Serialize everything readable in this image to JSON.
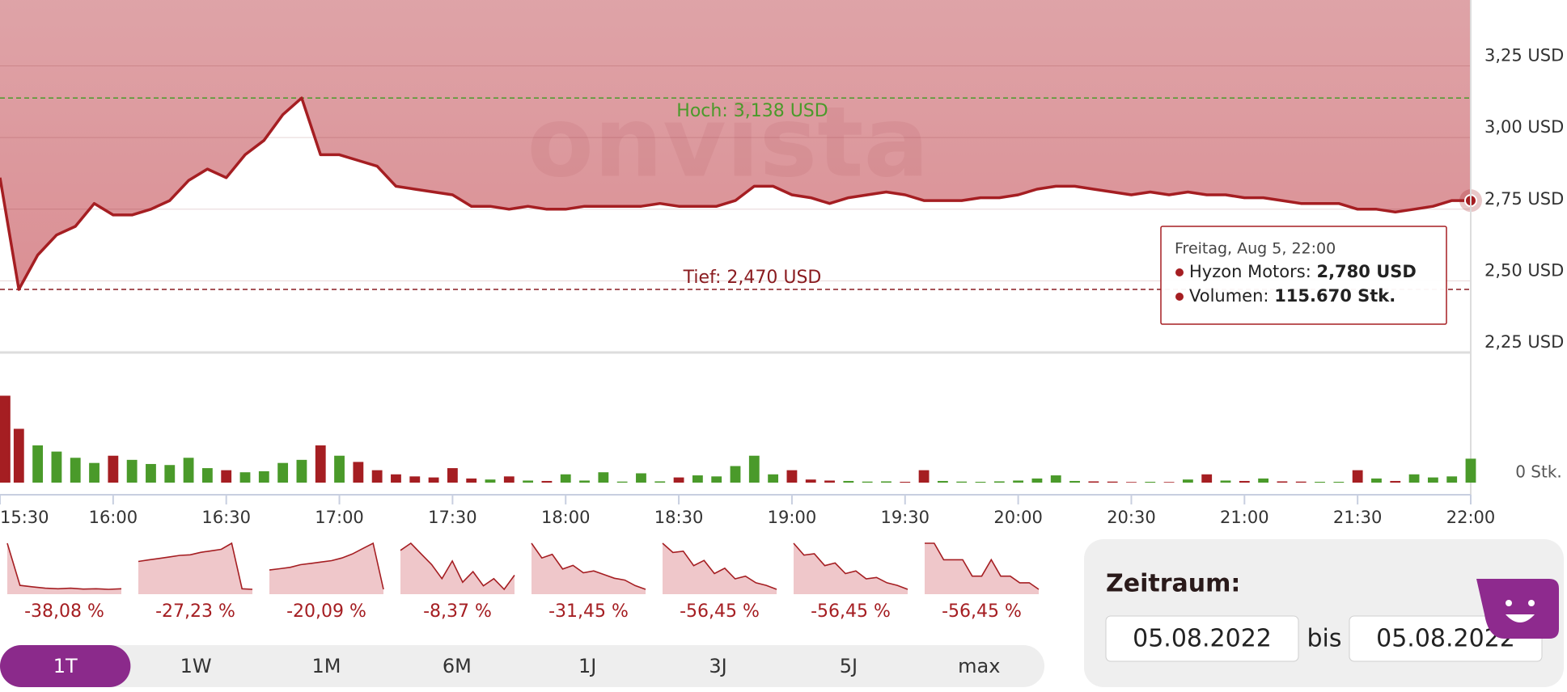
{
  "chart_data": [
    {
      "type": "line",
      "watermark": "onvista",
      "categories": [
        "15:30",
        null,
        null,
        null,
        null,
        null,
        "16:00",
        null,
        null,
        null,
        null,
        null,
        "16:30",
        null,
        null,
        null,
        null,
        null,
        "17:00",
        null,
        null,
        null,
        null,
        null,
        "17:30",
        null,
        null,
        null,
        null,
        null,
        "18:00",
        null,
        null,
        null,
        null,
        null,
        "18:30",
        null,
        null,
        null,
        null,
        null,
        "19:00",
        null,
        null,
        null,
        null,
        null,
        "19:30",
        null,
        null,
        null,
        null,
        null,
        "20:00",
        null,
        null,
        null,
        null,
        null,
        "20:30",
        null,
        null,
        null,
        null,
        null,
        "21:00",
        null,
        null,
        null,
        null,
        null,
        "21:30",
        null,
        null,
        null,
        null,
        null,
        "22:00"
      ],
      "series": [
        {
          "name": "Hyzon Motors",
          "color": "#a51e22",
          "values": [
            2.86,
            2.47,
            2.59,
            2.66,
            2.69,
            2.77,
            2.73,
            2.73,
            2.75,
            2.78,
            2.85,
            2.89,
            2.86,
            2.94,
            2.99,
            3.08,
            3.138,
            2.94,
            2.94,
            2.92,
            2.9,
            2.83,
            2.82,
            2.81,
            2.8,
            2.76,
            2.76,
            2.75,
            2.76,
            2.75,
            2.75,
            2.76,
            2.76,
            2.76,
            2.76,
            2.77,
            2.76,
            2.76,
            2.76,
            2.78,
            2.83,
            2.83,
            2.8,
            2.79,
            2.77,
            2.79,
            2.8,
            2.81,
            2.8,
            2.78,
            2.78,
            2.78,
            2.79,
            2.79,
            2.8,
            2.82,
            2.83,
            2.83,
            2.82,
            2.81,
            2.8,
            2.81,
            2.8,
            2.81,
            2.8,
            2.8,
            2.79,
            2.79,
            2.78,
            2.77,
            2.77,
            2.77,
            2.75,
            2.75,
            2.74,
            2.75,
            2.76,
            2.78,
            2.78
          ]
        }
      ],
      "ylim": [
        2.25,
        3.48
      ],
      "yticks": [
        {
          "value": 2.25,
          "label": "2,25 USD"
        },
        {
          "value": 2.5,
          "label": "2,50 USD"
        },
        {
          "value": 2.75,
          "label": "2,75 USD"
        },
        {
          "value": 3.0,
          "label": "3,00 USD"
        },
        {
          "value": 3.25,
          "label": "3,25 USD"
        }
      ],
      "grid": true,
      "high": {
        "value": 3.138,
        "label": "Hoch: 3,138 USD",
        "color": "#4a9a2a"
      },
      "low": {
        "value": 2.47,
        "label": "Tief: 2,470 USD",
        "color": "#8a1c20"
      },
      "tooltip": {
        "date": "Freitag, Aug 5, 22:00",
        "price_name": "Hyzon Motors:",
        "price": {
          "value": 2.78,
          "label": "2,780 USD"
        },
        "volume_name": "Volumen:",
        "volume": {
          "value": 115670,
          "label": "115.670 Stk."
        }
      }
    },
    {
      "type": "bar",
      "values": [
        420000,
        260000,
        180000,
        150000,
        120000,
        95000,
        130000,
        110000,
        90000,
        85000,
        120000,
        70000,
        60000,
        50000,
        55000,
        95000,
        110000,
        180000,
        130000,
        100000,
        60000,
        40000,
        30000,
        25000,
        70000,
        20000,
        15000,
        30000,
        10000,
        8000,
        40000,
        10000,
        50000,
        5000,
        45000,
        6000,
        25000,
        35000,
        30000,
        80000,
        130000,
        40000,
        60000,
        15000,
        10000,
        8000,
        5000,
        6000,
        4000,
        60000,
        8000,
        5000,
        4000,
        6000,
        10000,
        20000,
        35000,
        8000,
        6000,
        5000,
        3000,
        4000,
        3000,
        15000,
        40000,
        10000,
        8000,
        20000,
        6000,
        5000,
        4000,
        4000,
        60000,
        20000,
        8000,
        40000,
        25000,
        30000,
        115670
      ],
      "ylim": [
        0,
        500000
      ],
      "yticks": [
        {
          "value": 0,
          "label": "0 Stk."
        }
      ],
      "colors": {
        "up": "#4a9a2a",
        "down": "#a51e22"
      }
    },
    {
      "type": "area",
      "color": "#a51e22",
      "values": [
        4.4,
        2.9,
        2.85,
        2.8,
        2.78,
        2.8,
        2.77,
        2.78,
        2.76,
        2.78
      ],
      "change": {
        "value": -38.08,
        "label": "-38,08 %"
      }
    },
    {
      "type": "area",
      "color": "#a51e22",
      "values": [
        3.7,
        3.75,
        3.8,
        3.85,
        3.9,
        3.92,
        4.0,
        4.05,
        4.1,
        4.3,
        2.8,
        2.78
      ],
      "change": {
        "value": -27.23,
        "label": "-27,23 %"
      }
    },
    {
      "type": "area",
      "color": "#a51e22",
      "values": [
        3.5,
        3.55,
        3.6,
        3.7,
        3.75,
        3.8,
        3.85,
        3.95,
        4.1,
        4.3,
        4.5,
        2.78
      ],
      "change": {
        "value": -20.09,
        "label": "-20,09 %"
      }
    },
    {
      "type": "area",
      "color": "#a51e22",
      "values": [
        4.2,
        4.4,
        4.1,
        3.8,
        3.4,
        3.9,
        3.3,
        3.6,
        3.2,
        3.4,
        3.1,
        3.5
      ],
      "change": {
        "value": -8.37,
        "label": "-8,37 %"
      }
    },
    {
      "type": "area",
      "color": "#a51e22",
      "values": [
        6.2,
        5.4,
        5.6,
        4.8,
        5.0,
        4.6,
        4.7,
        4.5,
        4.3,
        4.2,
        3.9,
        3.7
      ],
      "change": {
        "value": -31.45,
        "label": "-31,45 %"
      }
    },
    {
      "type": "area",
      "color": "#a51e22",
      "values": [
        9.5,
        8.8,
        8.9,
        7.8,
        8.2,
        7.2,
        7.6,
        6.8,
        7.0,
        6.5,
        6.3,
        6.0
      ],
      "change": {
        "value": -56.45,
        "label": "-56,45 %"
      }
    },
    {
      "type": "area",
      "color": "#a51e22",
      "values": [
        9.6,
        8.7,
        8.8,
        7.9,
        8.1,
        7.3,
        7.5,
        6.9,
        7.0,
        6.6,
        6.4,
        6.1
      ],
      "change": {
        "value": -56.45,
        "label": "-56,45 %"
      }
    },
    {
      "type": "area",
      "color": "#a51e22",
      "values": [
        10,
        10,
        9,
        9,
        9,
        8,
        8,
        9,
        8,
        8,
        7.6,
        7.6,
        7.2
      ],
      "change": {
        "value": -56.45,
        "label": "-56,45 %"
      }
    }
  ],
  "tabs": {
    "items": [
      "1T",
      "1W",
      "1M",
      "6M",
      "1J",
      "3J",
      "5J",
      "max"
    ],
    "selected": 0
  },
  "date_range": {
    "title": "Zeitraum:",
    "from": "05.08.2022",
    "separator": "bis",
    "to": "05.08.2022"
  }
}
